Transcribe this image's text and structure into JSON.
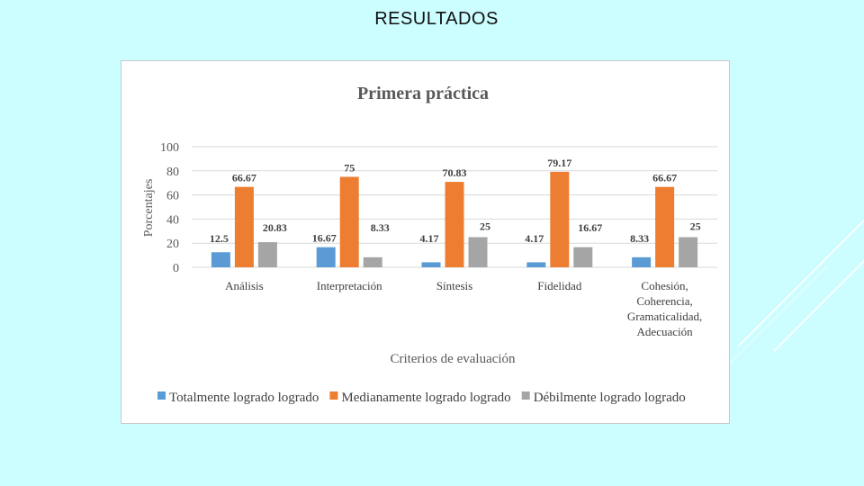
{
  "slide": {
    "title": "RESULTADOS"
  },
  "colors": {
    "background": "#ccfdff",
    "series": [
      "#5b9bd5",
      "#ed7d31",
      "#a5a5a5"
    ]
  },
  "chart_data": {
    "type": "bar",
    "title": "Primera práctica",
    "xlabel": "Criterios de evaluación",
    "ylabel": "Porcentajes",
    "ylim": [
      0,
      100
    ],
    "yticks": [
      0,
      20,
      40,
      60,
      80,
      100
    ],
    "grid": true,
    "legend": "bottom",
    "categories": [
      [
        "Análisis"
      ],
      [
        "Interpretación"
      ],
      [
        "Síntesis"
      ],
      [
        "Fidelidad"
      ],
      [
        "Cohesión,",
        "Coherencia,",
        "Gramaticalidad,",
        "Adecuación"
      ]
    ],
    "series": [
      {
        "name": "Totalmente logrado logrado",
        "values": [
          12.5,
          16.67,
          4.17,
          4.17,
          8.33
        ],
        "labels": [
          "12.5",
          "16.67",
          "4.17",
          "4.17",
          "8.33"
        ]
      },
      {
        "name": "Medianamente logrado logrado",
        "values": [
          66.67,
          75,
          70.83,
          79.17,
          66.67
        ],
        "labels": [
          "66.67",
          "75",
          "70.83",
          "79.17",
          "66.67"
        ]
      },
      {
        "name": "Débilmente logrado logrado",
        "values": [
          20.83,
          8.33,
          25,
          16.67,
          25
        ],
        "labels": [
          "20.83",
          "8.33",
          "25",
          "16.67",
          "25"
        ]
      }
    ]
  }
}
